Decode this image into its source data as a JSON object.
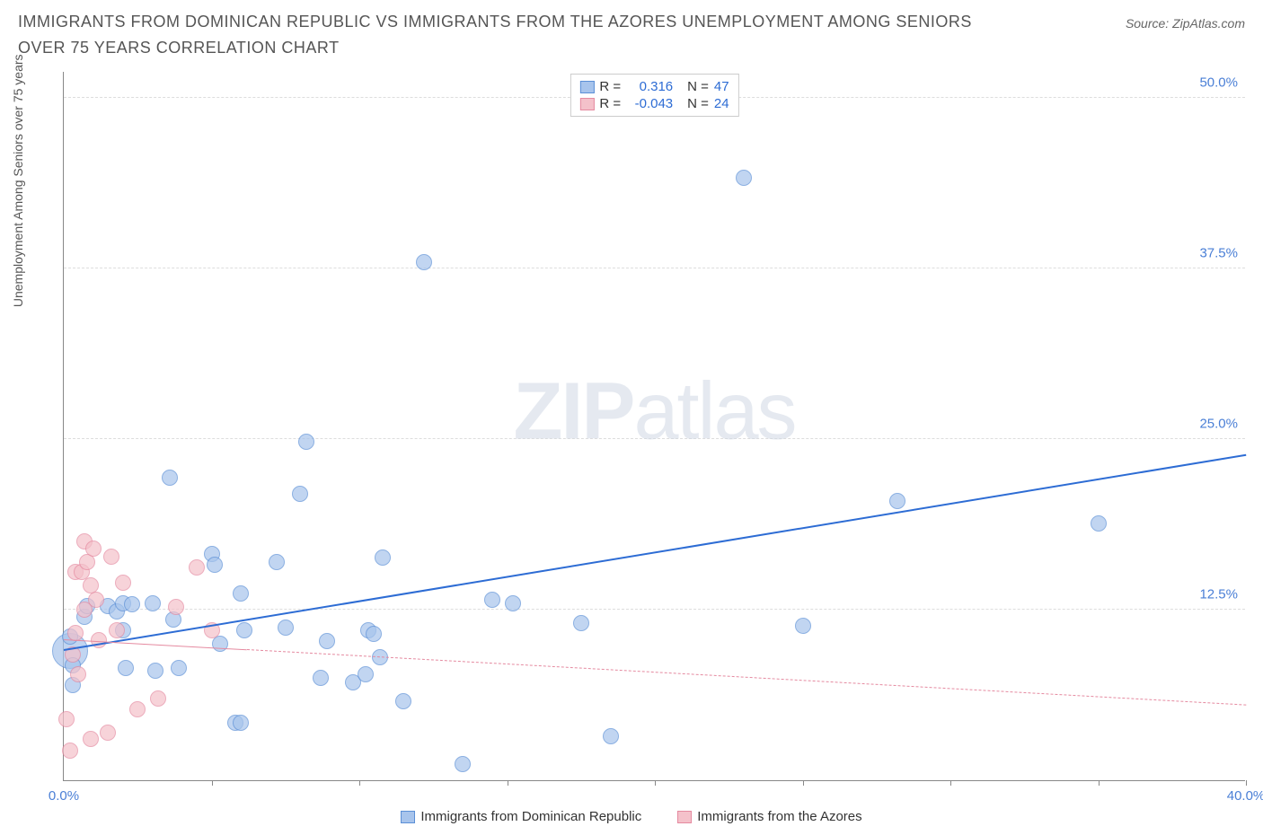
{
  "title": "IMMIGRANTS FROM DOMINICAN REPUBLIC VS IMMIGRANTS FROM THE AZORES UNEMPLOYMENT AMONG SENIORS OVER 75 YEARS CORRELATION CHART",
  "source": "Source: ZipAtlas.com",
  "ylabel": "Unemployment Among Seniors over 75 years",
  "watermark_bold": "ZIP",
  "watermark_light": "atlas",
  "chart": {
    "type": "scatter",
    "background_color": "#ffffff",
    "grid_color": "#dddddd",
    "axis_color": "#888888",
    "xlim": [
      0,
      40
    ],
    "ylim": [
      0,
      52
    ],
    "yticks": [
      {
        "v": 12.5,
        "label": "12.5%"
      },
      {
        "v": 25.0,
        "label": "25.0%"
      },
      {
        "v": 37.5,
        "label": "37.5%"
      },
      {
        "v": 50.0,
        "label": "50.0%"
      }
    ],
    "xticks_minor": [
      5,
      10,
      15,
      20,
      25,
      30,
      35,
      40
    ],
    "xtick_labels": [
      {
        "v": 0,
        "label": "0.0%",
        "color": "#4a7fd6"
      },
      {
        "v": 40,
        "label": "40.0%",
        "color": "#4a7fd6"
      }
    ],
    "ytick_color": "#4a7fd6",
    "series": [
      {
        "name": "Immigrants from Dominican Republic",
        "color_fill": "#a7c4ec",
        "color_stroke": "#5b8fd6",
        "opacity": 0.7,
        "marker_radius": 9,
        "trend": {
          "y_at_x0": 9.5,
          "y_at_xmax": 23.8,
          "solid": true,
          "color": "#2d6cd4",
          "width": 2.5,
          "extent_xmax": 40
        },
        "R": "0.316",
        "N": "47",
        "points": [
          [
            0.2,
            9.5,
            20
          ],
          [
            0.2,
            10.5,
            9
          ],
          [
            0.3,
            7.0,
            9
          ],
          [
            0.3,
            8.4,
            9
          ],
          [
            0.7,
            12.0,
            9
          ],
          [
            0.8,
            12.8,
            9
          ],
          [
            1.5,
            12.8,
            9
          ],
          [
            1.8,
            12.4,
            9
          ],
          [
            2.0,
            11.0,
            9
          ],
          [
            2.0,
            13.0,
            9
          ],
          [
            2.1,
            8.2,
            9
          ],
          [
            2.3,
            12.9,
            9
          ],
          [
            3.0,
            13.0,
            9
          ],
          [
            3.1,
            8.0,
            9
          ],
          [
            3.6,
            22.2,
            9
          ],
          [
            3.7,
            11.8,
            9
          ],
          [
            3.9,
            8.2,
            9
          ],
          [
            5.0,
            16.6,
            9
          ],
          [
            5.1,
            15.8,
            9
          ],
          [
            5.3,
            10.0,
            9
          ],
          [
            5.8,
            4.2,
            9
          ],
          [
            6.0,
            4.2,
            9
          ],
          [
            6.0,
            13.7,
            9
          ],
          [
            6.1,
            11.0,
            9
          ],
          [
            7.2,
            16.0,
            9
          ],
          [
            7.5,
            11.2,
            9
          ],
          [
            8.0,
            21.0,
            9
          ],
          [
            8.2,
            24.8,
            9
          ],
          [
            8.7,
            7.5,
            9
          ],
          [
            8.9,
            10.2,
            9
          ],
          [
            9.8,
            7.2,
            9
          ],
          [
            10.2,
            7.8,
            9
          ],
          [
            10.3,
            11.0,
            9
          ],
          [
            10.5,
            10.7,
            9
          ],
          [
            10.7,
            9.0,
            9
          ],
          [
            10.8,
            16.3,
            9
          ],
          [
            11.5,
            5.8,
            9
          ],
          [
            12.2,
            38.0,
            9
          ],
          [
            13.5,
            1.2,
            9
          ],
          [
            14.5,
            13.2,
            9
          ],
          [
            15.2,
            13.0,
            9
          ],
          [
            17.5,
            11.5,
            9
          ],
          [
            18.5,
            3.2,
            9
          ],
          [
            23.0,
            44.2,
            9
          ],
          [
            25.0,
            11.3,
            9
          ],
          [
            28.2,
            20.5,
            9
          ],
          [
            35.0,
            18.8,
            9
          ]
        ]
      },
      {
        "name": "Immigrants from the Azores",
        "color_fill": "#f4c1ca",
        "color_stroke": "#e58aa0",
        "opacity": 0.7,
        "marker_radius": 9,
        "trend": {
          "y_at_x0": 10.3,
          "y_at_xmax": 5.5,
          "solid": false,
          "color": "#e58aa0",
          "width": 1.5,
          "solid_extent_x": 6.2,
          "extent_xmax": 40
        },
        "R": "-0.043",
        "N": "24",
        "points": [
          [
            0.1,
            4.5,
            9
          ],
          [
            0.2,
            2.2,
            9
          ],
          [
            0.3,
            9.2,
            9
          ],
          [
            0.4,
            10.8,
            9
          ],
          [
            0.4,
            15.3,
            9
          ],
          [
            0.5,
            7.8,
            9
          ],
          [
            0.6,
            15.3,
            9
          ],
          [
            0.7,
            12.5,
            9
          ],
          [
            0.7,
            17.5,
            9
          ],
          [
            0.8,
            16.0,
            9
          ],
          [
            0.9,
            3.0,
            9
          ],
          [
            0.9,
            14.3,
            9
          ],
          [
            1.0,
            17.0,
            9
          ],
          [
            1.1,
            13.2,
            9
          ],
          [
            1.2,
            10.3,
            9
          ],
          [
            1.5,
            3.5,
            9
          ],
          [
            1.6,
            16.4,
            9
          ],
          [
            1.8,
            11.0,
            9
          ],
          [
            2.0,
            14.5,
            9
          ],
          [
            2.5,
            5.2,
            9
          ],
          [
            3.2,
            6.0,
            9
          ],
          [
            3.8,
            12.7,
            9
          ],
          [
            4.5,
            15.6,
            9
          ],
          [
            5.0,
            11.0,
            9
          ]
        ]
      }
    ]
  },
  "legend_top": {
    "r_label": "R =",
    "n_label": "N ="
  },
  "legend_bottom": [
    {
      "swatch_fill": "#a7c4ec",
      "swatch_stroke": "#5b8fd6",
      "label": "Immigrants from Dominican Republic"
    },
    {
      "swatch_fill": "#f4c1ca",
      "swatch_stroke": "#e58aa0",
      "label": "Immigrants from the Azores"
    }
  ]
}
